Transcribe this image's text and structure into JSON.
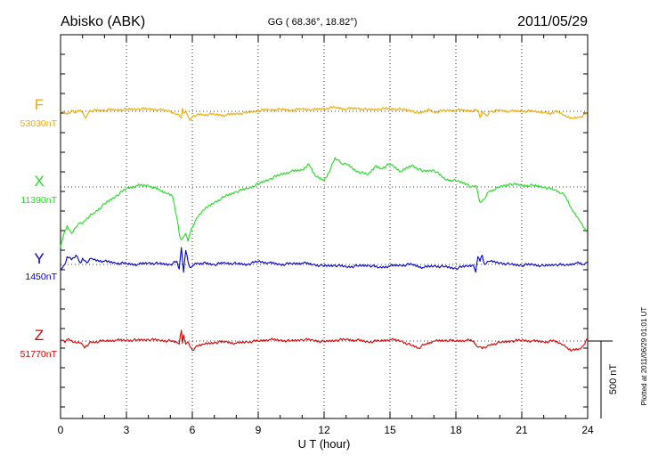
{
  "header": {
    "station": "Abisko (ABK)",
    "coords": "GG ( 68.36°,  18.82°)",
    "date": "2011/05/29"
  },
  "footer": {
    "xlabel": "U T (hour)",
    "plotted_note": "Plotted at 2011/06/29 01:01  UT",
    "scale_label": "500 nT"
  },
  "chart_data": {
    "type": "line",
    "title": "Abisko (ABK)  GG (68.36°, 18.82°)  2011/05/29",
    "xlabel": "U T (hour)",
    "ylabel": "",
    "xlim": [
      0,
      24
    ],
    "x_ticks": [
      0,
      3,
      6,
      9,
      12,
      15,
      18,
      21,
      24
    ],
    "x_tick_labels": [
      "0",
      "3",
      "6",
      "9",
      "12",
      "15",
      "18",
      "21",
      "24"
    ],
    "grid": true,
    "scale_bar_nT": 500,
    "series": [
      {
        "name": "F",
        "baseline_label": "53030nT",
        "color": "#f2a900",
        "x": [
          0,
          0.3,
          0.5,
          0.7,
          0.9,
          1.0,
          1.15,
          1.3,
          1.5,
          2,
          2.5,
          3,
          3.5,
          4,
          4.5,
          5,
          5.2,
          5.4,
          5.5,
          5.55,
          5.6,
          5.7,
          5.8,
          5.9,
          6,
          6.2,
          6.5,
          7,
          7.5,
          8,
          8.5,
          9,
          9.5,
          10,
          10.5,
          11,
          11.5,
          12,
          12.5,
          13,
          13.5,
          14,
          14.5,
          15,
          15.5,
          16,
          16.3,
          16.7,
          17,
          17.5,
          18,
          18.5,
          19,
          19.1,
          19.2,
          19.4,
          19.6,
          20,
          20.5,
          21,
          21.5,
          22,
          22.3,
          22.5,
          22.8,
          23,
          23.3,
          23.6,
          23.9,
          24
        ],
        "values": [
          0,
          -20,
          5,
          -10,
          10,
          -5,
          -45,
          0,
          5,
          8,
          10,
          12,
          15,
          15,
          10,
          0,
          -15,
          -25,
          -45,
          20,
          -10,
          5,
          -30,
          -60,
          -35,
          -25,
          -20,
          -20,
          -25,
          -15,
          -10,
          5,
          10,
          12,
          8,
          15,
          10,
          18,
          25,
          15,
          20,
          10,
          15,
          18,
          12,
          5,
          -15,
          10,
          -5,
          5,
          8,
          5,
          5,
          -40,
          0,
          -30,
          0,
          5,
          0,
          2,
          0,
          -5,
          -20,
          0,
          -10,
          -30,
          -45,
          -40,
          -20,
          0
        ]
      },
      {
        "name": "X",
        "baseline_label": "11390nT",
        "color": "#22dd22",
        "x": [
          0,
          0.1,
          0.3,
          0.5,
          0.7,
          0.9,
          1.0,
          1.2,
          1.5,
          2,
          2.5,
          3,
          3.5,
          4,
          4.5,
          4.8,
          5.1,
          5.3,
          5.4,
          5.5,
          5.6,
          5.7,
          5.8,
          5.9,
          6,
          6.2,
          6.5,
          7,
          7.5,
          8,
          8.5,
          9,
          9.5,
          10,
          10.5,
          11,
          11.3,
          11.6,
          12,
          12.3,
          12.5,
          12.8,
          13,
          13.5,
          14,
          14.3,
          14.6,
          15,
          15.5,
          16,
          16.5,
          17,
          17.5,
          18,
          18.5,
          18.7,
          18.9,
          19.0,
          19.1,
          19.3,
          19.5,
          20,
          20.5,
          21,
          21.5,
          22,
          22.5,
          22.8,
          23,
          23.3,
          23.6,
          23.8,
          24
        ],
        "values": [
          -390,
          -330,
          -250,
          -300,
          -260,
          -230,
          -240,
          -200,
          -170,
          -110,
          -60,
          -10,
          10,
          10,
          -20,
          -40,
          -60,
          -200,
          -300,
          -340,
          -320,
          -300,
          -350,
          -300,
          -260,
          -200,
          -150,
          -100,
          -60,
          -30,
          -10,
          20,
          50,
          80,
          100,
          110,
          150,
          70,
          40,
          120,
          190,
          150,
          150,
          100,
          80,
          130,
          120,
          150,
          100,
          140,
          100,
          110,
          50,
          40,
          20,
          0,
          10,
          -40,
          -100,
          -80,
          -30,
          0,
          20,
          10,
          10,
          0,
          -20,
          -40,
          -60,
          -150,
          -210,
          -260,
          -290
        ]
      },
      {
        "name": "Y",
        "baseline_label": "1450nT",
        "color": "#0000dd",
        "x": [
          0,
          0.2,
          0.3,
          0.5,
          0.7,
          0.9,
          1.0,
          1.2,
          1.4,
          1.5,
          2,
          2.5,
          3,
          3.5,
          4,
          4.5,
          5,
          5.3,
          5.4,
          5.5,
          5.6,
          5.7,
          5.8,
          5.9,
          6.0,
          6.2,
          6.5,
          7,
          7.5,
          8,
          8.5,
          9,
          9.5,
          10,
          10.5,
          11,
          11.5,
          12,
          12.5,
          13,
          13.5,
          14,
          14.5,
          15,
          15.5,
          16,
          16.5,
          17,
          17.5,
          18,
          18.5,
          18.8,
          18.9,
          19.0,
          19.1,
          19.2,
          19.3,
          19.5,
          20,
          20.5,
          21,
          21.5,
          22,
          22.5,
          23,
          23.5,
          23.8,
          23.9,
          24
        ],
        "values": [
          -30,
          0,
          50,
          30,
          60,
          10,
          40,
          10,
          40,
          30,
          20,
          10,
          5,
          0,
          10,
          5,
          0,
          20,
          -30,
          110,
          -50,
          90,
          20,
          -20,
          -10,
          5,
          10,
          0,
          10,
          5,
          0,
          20,
          10,
          0,
          5,
          10,
          0,
          -10,
          -5,
          -15,
          -10,
          -5,
          -20,
          -10,
          -5,
          0,
          -20,
          -10,
          -15,
          -25,
          -10,
          -5,
          -50,
          50,
          20,
          60,
          0,
          20,
          10,
          0,
          -5,
          0,
          -10,
          0,
          -5,
          10,
          0,
          10,
          20
        ]
      },
      {
        "name": "Z",
        "baseline_label": "51770nT",
        "color": "#dd0000",
        "x": [
          0,
          0.2,
          0.3,
          0.5,
          0.7,
          0.8,
          1.0,
          1.1,
          1.3,
          1.5,
          2,
          2.5,
          3,
          3.5,
          4,
          4.5,
          5,
          5.3,
          5.4,
          5.5,
          5.55,
          5.6,
          5.7,
          5.8,
          5.9,
          6.0,
          6.2,
          6.5,
          7,
          7.5,
          8,
          8.5,
          9,
          9.5,
          10,
          10.5,
          11,
          11.5,
          12,
          12.5,
          13,
          13.5,
          14,
          14.5,
          15,
          15.5,
          16,
          16.3,
          16.6,
          17,
          17.5,
          18,
          18.5,
          18.8,
          18.9,
          19.0,
          19.1,
          19.2,
          19.3,
          19.5,
          20,
          20.5,
          21,
          21.5,
          22,
          22.5,
          22.8,
          23,
          23.3,
          23.6,
          23.8,
          24
        ],
        "values": [
          10,
          -10,
          10,
          5,
          -10,
          -5,
          -25,
          -45,
          -15,
          -5,
          0,
          5,
          5,
          5,
          10,
          5,
          0,
          -10,
          -20,
          70,
          -15,
          40,
          -20,
          -5,
          -40,
          -60,
          -30,
          -20,
          -10,
          -5,
          -15,
          -5,
          0,
          10,
          5,
          0,
          10,
          5,
          -5,
          5,
          10,
          5,
          -5,
          0,
          10,
          0,
          -30,
          -45,
          -20,
          0,
          5,
          0,
          5,
          0,
          -20,
          -40,
          -35,
          -50,
          -40,
          -25,
          -10,
          0,
          5,
          0,
          -5,
          0,
          -20,
          -40,
          -60,
          -50,
          -30,
          20
        ]
      }
    ]
  }
}
